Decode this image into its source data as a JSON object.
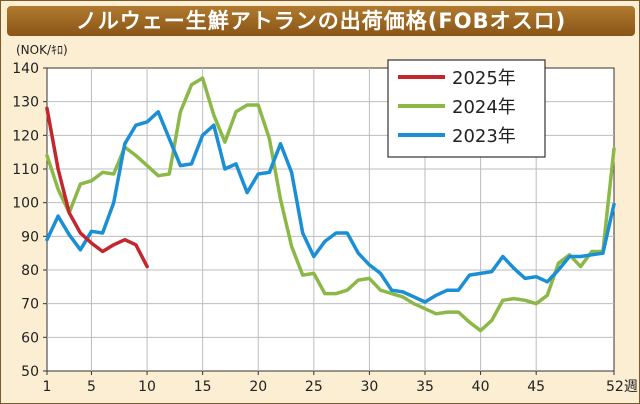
{
  "title": "ノルウェー生鮮アトランの出荷価格(FOBオスロ)",
  "chart_data": {
    "type": "line",
    "title": "ノルウェー生鮮アトランの出荷価格(FOBオスロ)",
    "ylabel": "(NOK/ｷﾛ)",
    "xlabel": "",
    "x_tick_labels": [
      "1",
      "5",
      "10",
      "15",
      "20",
      "25",
      "30",
      "35",
      "40",
      "45",
      "52週"
    ],
    "x_tick_values": [
      1,
      5,
      10,
      15,
      20,
      25,
      30,
      35,
      40,
      45,
      52
    ],
    "xlim": [
      1,
      52
    ],
    "ylim": [
      50,
      140
    ],
    "y_ticks": [
      50,
      60,
      70,
      80,
      90,
      100,
      110,
      120,
      130,
      140
    ],
    "grid": true,
    "legend_position": "top-right",
    "colors": {
      "2025": "#c4262e",
      "2024": "#8cb848",
      "2023": "#1a8fd6"
    },
    "series": [
      {
        "name": "2025年",
        "key": "2025",
        "x": [
          1,
          2,
          3,
          4,
          5,
          6,
          7,
          8,
          9,
          10
        ],
        "values": [
          128,
          110,
          97,
          91,
          88,
          85.5,
          87.5,
          89,
          87.5,
          81
        ]
      },
      {
        "name": "2024年",
        "key": "2024",
        "x": [
          1,
          2,
          3,
          4,
          5,
          6,
          7,
          8,
          9,
          10,
          11,
          12,
          13,
          14,
          15,
          16,
          17,
          18,
          19,
          20,
          21,
          22,
          23,
          24,
          25,
          26,
          27,
          28,
          29,
          30,
          31,
          32,
          33,
          34,
          35,
          36,
          37,
          38,
          39,
          40,
          41,
          42,
          43,
          44,
          45,
          46,
          47,
          48,
          49,
          50,
          51,
          52
        ],
        "values": [
          114,
          104,
          97,
          105.5,
          106.5,
          109,
          108.5,
          116.5,
          114,
          111,
          108,
          108.5,
          127,
          135,
          137,
          126,
          118,
          127,
          129,
          129,
          119,
          101,
          87,
          78.5,
          79,
          73,
          73,
          74,
          77,
          77.5,
          74,
          73,
          72,
          70,
          68.5,
          67,
          67.5,
          67.5,
          64.5,
          62,
          65,
          71,
          71.5,
          71,
          70,
          72.5,
          82,
          84.5,
          81,
          85.5,
          85.5,
          116
        ]
      },
      {
        "name": "2023年",
        "key": "2023",
        "x": [
          1,
          2,
          3,
          4,
          5,
          6,
          7,
          8,
          9,
          10,
          11,
          12,
          13,
          14,
          15,
          16,
          17,
          18,
          19,
          20,
          21,
          22,
          23,
          24,
          25,
          26,
          27,
          28,
          29,
          30,
          31,
          32,
          33,
          34,
          35,
          36,
          37,
          38,
          39,
          40,
          41,
          42,
          43,
          44,
          45,
          46,
          47,
          48,
          49,
          50,
          51,
          52
        ],
        "values": [
          89,
          96,
          90.5,
          86,
          91.5,
          91,
          100,
          117.5,
          123,
          124,
          127,
          119,
          111,
          111.5,
          120,
          123,
          110,
          111.5,
          103,
          108.5,
          109,
          117.5,
          109,
          91,
          84,
          88.5,
          91,
          91,
          85,
          81.5,
          79,
          74,
          73.5,
          72,
          70.5,
          72.5,
          74,
          74,
          78.5,
          79,
          79.5,
          84,
          80.5,
          77.5,
          78,
          76.5,
          80,
          84,
          84,
          84.5,
          85,
          99.5
        ]
      }
    ]
  }
}
